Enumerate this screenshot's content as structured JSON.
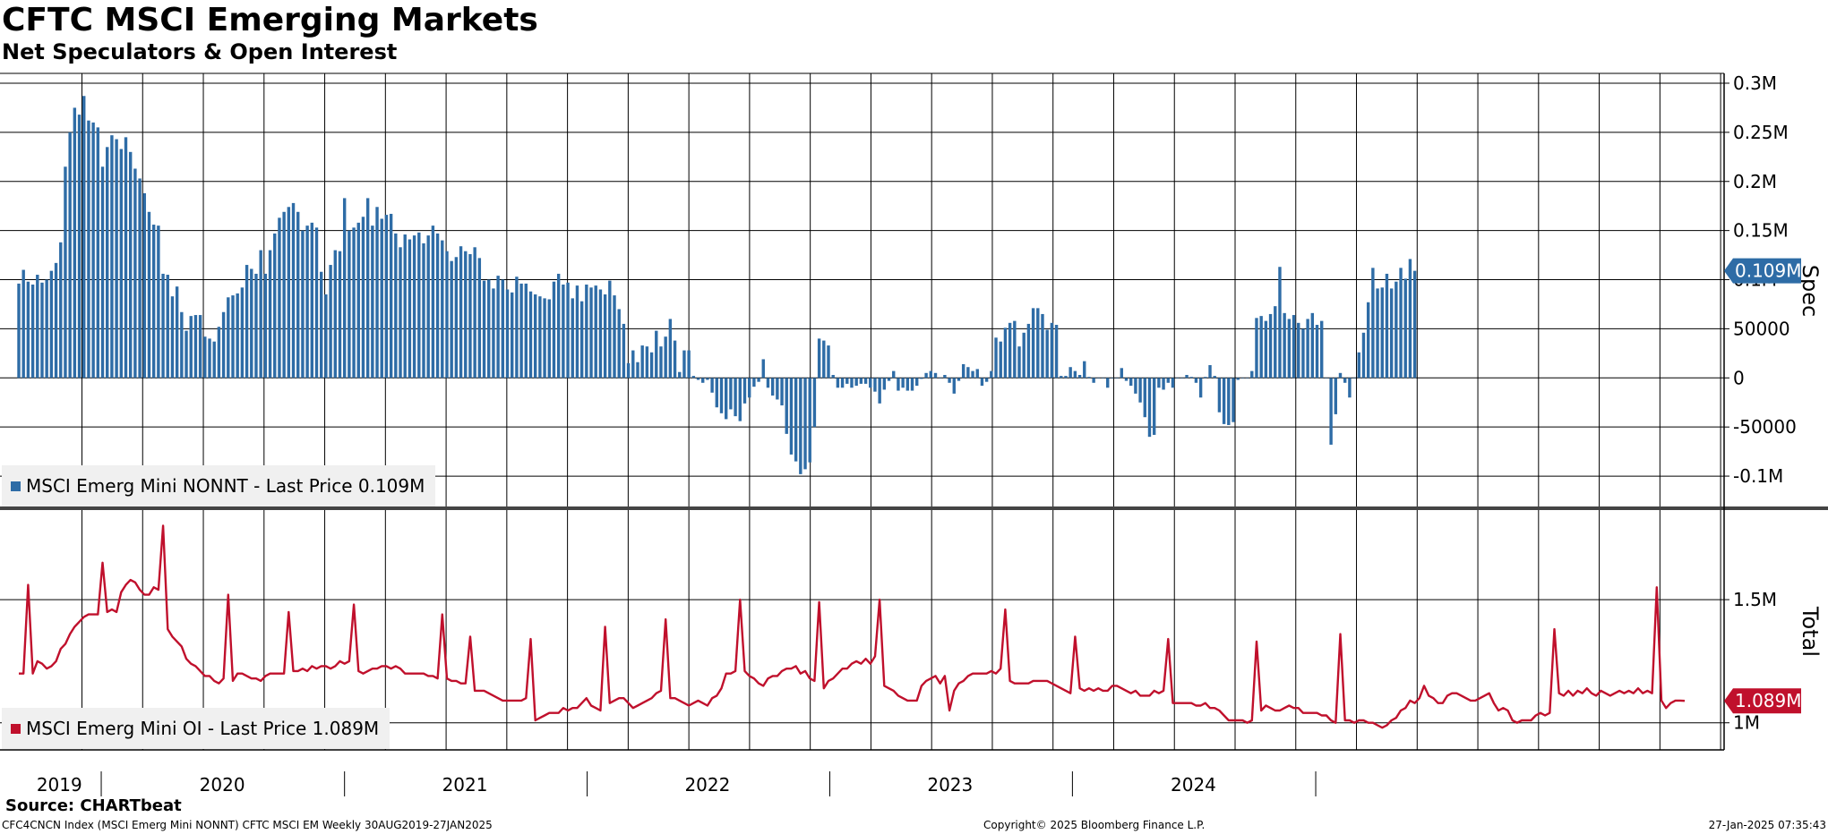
{
  "title": "CFTC MSCI Emerging Markets",
  "subtitle": "Net Speculators & Open Interest",
  "source": "Source: CHARTbeat",
  "footer": {
    "left": "CFC4CNCN Index (MSCI Emerg Mini NONNT) CFTC MSCI EM  Weekly 30AUG2019-27JAN2025",
    "middle": "Copyright© 2025 Bloomberg Finance L.P.",
    "right": "27-Jan-2025 07:35:43"
  },
  "chart_data": [
    {
      "type": "bar",
      "name": "MSCI Emerg Mini NONNT",
      "legend_label": "MSCI Emerg Mini NONNT - Last Price 0.109M",
      "axis_label": "Spec",
      "last_value_label": "0.109M",
      "color": "#2e6ca6",
      "ylim": [
        -130000,
        310000
      ],
      "y_ticks": [
        {
          "value": 300000,
          "label": "0.3M"
        },
        {
          "value": 250000,
          "label": "0.25M"
        },
        {
          "value": 200000,
          "label": "0.2M"
        },
        {
          "value": 150000,
          "label": "0.15M"
        },
        {
          "value": 100000,
          "label": "0.1M"
        },
        {
          "value": 50000,
          "label": "50000"
        },
        {
          "value": 0,
          "label": "0"
        },
        {
          "value": -50000,
          "label": "-50000"
        },
        {
          "value": -100000,
          "label": "-0.1M"
        }
      ],
      "start_date": "2019-08-30",
      "frequency": "weekly",
      "values": [
        96000,
        110000,
        98000,
        95000,
        105000,
        97000,
        100000,
        109000,
        117000,
        138000,
        215000,
        250000,
        275000,
        268000,
        287000,
        262000,
        260000,
        255000,
        215000,
        235000,
        247000,
        243000,
        233000,
        245000,
        230000,
        213000,
        203000,
        188000,
        169000,
        156000,
        155000,
        106000,
        105000,
        83000,
        93000,
        67000,
        48000,
        63000,
        64000,
        64000,
        42000,
        40000,
        37000,
        52000,
        67000,
        82000,
        84000,
        86000,
        92000,
        115000,
        111000,
        106000,
        130000,
        106000,
        130000,
        147000,
        163000,
        169000,
        174000,
        178000,
        169000,
        150000,
        155000,
        158000,
        153000,
        108000,
        85000,
        115000,
        130000,
        129000,
        183000,
        150000,
        153000,
        158000,
        164000,
        183000,
        155000,
        174000,
        162000,
        166000,
        167000,
        147000,
        133000,
        146000,
        141000,
        145000,
        148000,
        137000,
        145000,
        155000,
        147000,
        140000,
        129000,
        119000,
        123000,
        134000,
        129000,
        126000,
        133000,
        122000,
        99000,
        100000,
        91000,
        104000,
        100000,
        90000,
        87000,
        103000,
        96000,
        96000,
        88000,
        85000,
        83000,
        81000,
        80000,
        98000,
        106000,
        95000,
        97000,
        81000,
        94000,
        78000,
        95000,
        92000,
        94000,
        90000,
        85000,
        99000,
        84000,
        70000,
        55000,
        15000,
        28000,
        16000,
        33000,
        32000,
        26000,
        48000,
        32000,
        42000,
        60000,
        38000,
        6000,
        28000,
        28000,
        2000,
        -2000,
        -5000,
        -2000,
        -15000,
        -30000,
        -36000,
        -42000,
        -32000,
        -39000,
        -44000,
        -26000,
        -20000,
        -9000,
        -4000,
        19000,
        -10000,
        -18000,
        -22000,
        -28000,
        -57000,
        -78000,
        -85000,
        -98000,
        -93000,
        -86000,
        -50000,
        40000,
        38000,
        33000,
        3000,
        -10000,
        -10000,
        -6000,
        -10000,
        -8000,
        -6000,
        -6000,
        -10000,
        -14000,
        -26000,
        -12000,
        -3000,
        7000,
        -13000,
        -10000,
        -13000,
        -13000,
        -8000,
        -1000,
        5000,
        7000,
        5000,
        0,
        3000,
        -5000,
        -16000,
        -3000,
        14000,
        11000,
        7000,
        9000,
        -8000,
        -4000,
        7000,
        41000,
        37000,
        51000,
        56000,
        58000,
        32000,
        46000,
        55000,
        71000,
        71000,
        65000,
        49000,
        56000,
        54000,
        2000,
        2000,
        11000,
        7000,
        3000,
        17000,
        1000,
        -5000,
        0,
        0,
        -10000,
        0,
        0,
        10000,
        -3000,
        -8000,
        -16000,
        -25000,
        -40000,
        -60000,
        -58000,
        -10000,
        -12000,
        -5000,
        -10000,
        0,
        0,
        3000,
        1000,
        -5000,
        -20000,
        1000,
        13000,
        2000,
        -35000,
        -47000,
        -48000,
        -45000,
        -2000,
        0,
        0,
        7000,
        61000,
        63000,
        58000,
        65000,
        73000,
        113000,
        66000,
        60000,
        64000,
        56000,
        50000,
        60000,
        66000,
        54000,
        58000,
        0,
        -68000,
        -37000,
        5000,
        -5000,
        -20000,
        0,
        26000,
        46000,
        77000,
        112000,
        91000,
        92000,
        106000,
        91000,
        98000,
        112000,
        101000,
        121000,
        109000
      ]
    },
    {
      "type": "line",
      "name": "MSCI Emerg Mini OI",
      "legend_label": "MSCI Emerg Mini OI - Last Price 1.089M",
      "axis_label": "Total",
      "last_value_label": "1.089M",
      "color": "#c0102c",
      "ylim": [
        890000,
        1860000
      ],
      "y_ticks": [
        {
          "value": 1500000,
          "label": "1.5M"
        },
        {
          "value": 1000000,
          "label": "1M"
        }
      ],
      "start_date": "2019-08-30",
      "frequency": "weekly",
      "values": [
        1200000,
        1200000,
        1560000,
        1200000,
        1250000,
        1240000,
        1220000,
        1230000,
        1250000,
        1300000,
        1320000,
        1360000,
        1390000,
        1410000,
        1430000,
        1440000,
        1440000,
        1440000,
        1650000,
        1450000,
        1460000,
        1450000,
        1530000,
        1560000,
        1580000,
        1570000,
        1540000,
        1520000,
        1520000,
        1550000,
        1540000,
        1800000,
        1380000,
        1350000,
        1330000,
        1310000,
        1260000,
        1240000,
        1230000,
        1210000,
        1190000,
        1190000,
        1170000,
        1160000,
        1180000,
        1520000,
        1170000,
        1200000,
        1200000,
        1190000,
        1180000,
        1180000,
        1170000,
        1190000,
        1200000,
        1200000,
        1200000,
        1200000,
        1450000,
        1210000,
        1210000,
        1220000,
        1210000,
        1230000,
        1220000,
        1230000,
        1230000,
        1220000,
        1230000,
        1250000,
        1240000,
        1250000,
        1480000,
        1210000,
        1200000,
        1210000,
        1220000,
        1220000,
        1230000,
        1230000,
        1220000,
        1230000,
        1220000,
        1200000,
        1200000,
        1200000,
        1200000,
        1200000,
        1190000,
        1190000,
        1180000,
        1440000,
        1180000,
        1170000,
        1170000,
        1160000,
        1160000,
        1350000,
        1130000,
        1130000,
        1130000,
        1120000,
        1110000,
        1100000,
        1090000,
        1090000,
        1090000,
        1090000,
        1090000,
        1100000,
        1340000,
        1010000,
        1020000,
        1030000,
        1040000,
        1040000,
        1040000,
        1060000,
        1050000,
        1060000,
        1060000,
        1080000,
        1100000,
        1070000,
        1060000,
        1050000,
        1390000,
        1080000,
        1090000,
        1100000,
        1100000,
        1080000,
        1060000,
        1070000,
        1080000,
        1090000,
        1100000,
        1120000,
        1130000,
        1420000,
        1100000,
        1100000,
        1090000,
        1080000,
        1070000,
        1080000,
        1090000,
        1080000,
        1070000,
        1100000,
        1110000,
        1140000,
        1200000,
        1200000,
        1210000,
        1500000,
        1210000,
        1190000,
        1180000,
        1160000,
        1150000,
        1180000,
        1190000,
        1190000,
        1210000,
        1220000,
        1220000,
        1230000,
        1200000,
        1210000,
        1180000,
        1170000,
        1490000,
        1140000,
        1170000,
        1180000,
        1200000,
        1220000,
        1220000,
        1240000,
        1250000,
        1240000,
        1260000,
        1240000,
        1270000,
        1500000,
        1150000,
        1140000,
        1130000,
        1110000,
        1100000,
        1090000,
        1090000,
        1090000,
        1150000,
        1170000,
        1180000,
        1190000,
        1160000,
        1190000,
        1050000,
        1130000,
        1160000,
        1170000,
        1190000,
        1200000,
        1200000,
        1200000,
        1200000,
        1210000,
        1200000,
        1220000,
        1460000,
        1170000,
        1160000,
        1160000,
        1160000,
        1160000,
        1170000,
        1170000,
        1170000,
        1170000,
        1160000,
        1150000,
        1140000,
        1130000,
        1120000,
        1350000,
        1140000,
        1130000,
        1140000,
        1130000,
        1140000,
        1130000,
        1130000,
        1150000,
        1150000,
        1140000,
        1130000,
        1120000,
        1130000,
        1110000,
        1110000,
        1110000,
        1130000,
        1120000,
        1130000,
        1340000,
        1080000,
        1080000,
        1080000,
        1080000,
        1080000,
        1070000,
        1070000,
        1080000,
        1060000,
        1060000,
        1050000,
        1030000,
        1010000,
        1010000,
        1010000,
        1010000,
        1000000,
        1010000,
        1330000,
        1050000,
        1070000,
        1060000,
        1050000,
        1050000,
        1060000,
        1070000,
        1060000,
        1060000,
        1040000,
        1040000,
        1040000,
        1040000,
        1030000,
        1030000,
        1010000,
        1000000,
        1360000,
        1010000,
        1010000,
        1000000,
        1010000,
        1010000,
        1000000,
        1000000,
        990000,
        980000,
        990000,
        1010000,
        1020000,
        1050000,
        1060000,
        1090000,
        1080000,
        1100000,
        1150000,
        1110000,
        1100000,
        1080000,
        1080000,
        1110000,
        1120000,
        1120000,
        1110000,
        1100000,
        1090000,
        1090000,
        1100000,
        1110000,
        1120000,
        1080000,
        1050000,
        1060000,
        1050000,
        1010000,
        1000000,
        1010000,
        1010000,
        1010000,
        1030000,
        1040000,
        1030000,
        1040000,
        1380000,
        1120000,
        1110000,
        1130000,
        1110000,
        1130000,
        1120000,
        1140000,
        1120000,
        1110000,
        1130000,
        1120000,
        1110000,
        1120000,
        1130000,
        1120000,
        1130000,
        1120000,
        1140000,
        1120000,
        1130000,
        1120000,
        1550000,
        1090000,
        1060000,
        1080000,
        1090000,
        1090000,
        1089000
      ]
    }
  ],
  "x_axis": {
    "year_labels": [
      {
        "label": "2019",
        "date": "2019-10-30"
      },
      {
        "label": "2020",
        "date": "2020-07-01"
      },
      {
        "label": "2021",
        "date": "2021-07-01"
      },
      {
        "label": "2022",
        "date": "2022-07-01"
      },
      {
        "label": "2023",
        "date": "2023-07-01"
      },
      {
        "label": "2024",
        "date": "2024-07-01"
      }
    ]
  }
}
